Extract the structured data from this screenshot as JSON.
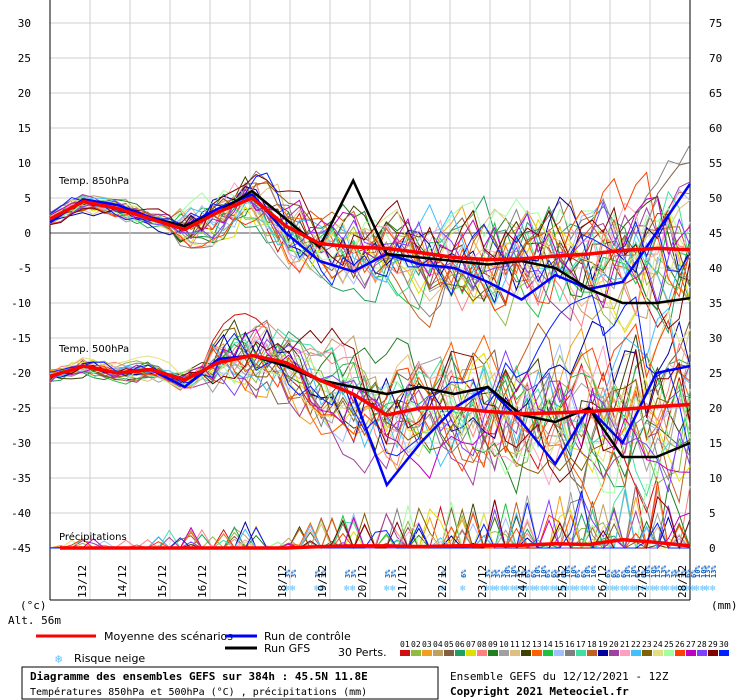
{
  "chart_data": {
    "type": "line",
    "left_axis_ticks": [
      30,
      25,
      20,
      15,
      10,
      5,
      0,
      -5,
      -10,
      -15,
      -20,
      -25,
      -30,
      -35,
      -40,
      -45
    ],
    "right_axis_ticks": [
      75,
      70,
      65,
      60,
      55,
      50,
      45,
      40,
      35,
      30,
      25,
      20,
      15,
      10,
      5,
      0
    ],
    "left_unit": "(°c)",
    "right_unit": "(mm)",
    "altitude": "Alt. 56m",
    "dates": [
      "13/12",
      "14/12",
      "15/12",
      "16/12",
      "17/12",
      "18/12",
      "19/12",
      "20/12",
      "21/12",
      "22/12",
      "23/12",
      "24/12",
      "25/12",
      "26/12",
      "27/12",
      "28/12"
    ],
    "series_labels": {
      "t850": "Temp. 850hPa",
      "t500": "Temp. 500hPa",
      "precip": "Précipitations"
    },
    "t850_mean": [
      2,
      4.5,
      3.5,
      2,
      0.5,
      3,
      5,
      1,
      -1.5,
      -2,
      -2.2,
      -2.8,
      -3.5,
      -3.8,
      -3.7,
      -3.3,
      -3,
      -2.5,
      -2.2,
      -2.4
    ],
    "t850_control": [
      1.5,
      4.8,
      4,
      2.2,
      1,
      3.5,
      5.5,
      0,
      -4,
      -5.5,
      -3,
      -4.5,
      -5,
      -7,
      -9.5,
      -6,
      -8,
      -7,
      0,
      7
    ],
    "t850_gfs": [
      2,
      4.5,
      3.5,
      2,
      1,
      3,
      6,
      2,
      -2,
      7.5,
      -3,
      -3.5,
      -4,
      -4.5,
      -4,
      -5,
      -8,
      -10,
      -10,
      -9.3
    ],
    "t500_mean": [
      -20.5,
      -19,
      -20,
      -19.5,
      -21,
      -18.5,
      -17.5,
      -18.5,
      -21,
      -23,
      -26,
      -25,
      -25,
      -25.5,
      -25.8,
      -25.7,
      -25.5,
      -25.2,
      -24.8,
      -24.5
    ],
    "t500_control": [
      -20.5,
      -19,
      -20,
      -19.5,
      -22,
      -18,
      -17.5,
      -19,
      -21,
      -23,
      -36,
      -30,
      -25,
      -22,
      -27,
      -33,
      -25,
      -30,
      -20,
      -19
    ],
    "t500_gfs": [
      -20.5,
      -19,
      -20,
      -19.5,
      -21,
      -18.5,
      -17.5,
      -19,
      -21,
      -22,
      -23,
      -22,
      -23,
      -22,
      -26,
      -27,
      -25,
      -32,
      -32,
      -30
    ],
    "precip_mean": [
      0,
      0,
      0,
      0,
      0,
      0,
      0,
      0,
      0.2,
      0.3,
      0.3,
      0.2,
      0.3,
      0.4,
      0.4,
      0.6,
      0.5,
      1.2,
      0.8,
      0.3
    ],
    "snow_marks": [
      {
        "day": 6.0,
        "labels": [
          "3%",
          "3%"
        ]
      },
      {
        "day": 6.75,
        "labels": [
          "3%",
          "3%"
        ]
      },
      {
        "day": 7.5,
        "labels": [
          "3%",
          "3%"
        ]
      },
      {
        "day": 8.5,
        "labels": [
          "3%",
          "3%"
        ]
      },
      {
        "day": 9.9,
        "labels": [
          "3%"
        ]
      },
      {
        "day": 10.4,
        "labels": [
          "6%"
        ]
      },
      {
        "day": 11.0,
        "labels": [
          "3%",
          "3%"
        ]
      },
      {
        "day": 11.25,
        "labels": [
          "3%",
          "3%"
        ]
      },
      {
        "day": 11.5,
        "labels": [
          "10%",
          "10%"
        ]
      },
      {
        "day": 11.75,
        "labels": [
          "3%",
          "3%"
        ]
      },
      {
        "day": 12.0,
        "labels": [
          "6%",
          "6%"
        ]
      },
      {
        "day": 12.25,
        "labels": [
          "10%",
          "10%"
        ]
      },
      {
        "day": 12.5,
        "labels": [
          "6%",
          "6%"
        ]
      },
      {
        "day": 12.75,
        "labels": [
          "6%",
          "6%"
        ]
      },
      {
        "day": 13.0,
        "labels": [
          "10%",
          "10%"
        ]
      },
      {
        "day": 13.25,
        "labels": [
          "6%",
          "6%"
        ]
      },
      {
        "day": 13.5,
        "labels": [
          "10%",
          "10%"
        ]
      },
      {
        "day": 14.0,
        "labels": [
          "6%",
          "6%"
        ]
      },
      {
        "day": 14.25,
        "labels": [
          "6%",
          "6%"
        ]
      },
      {
        "day": 14.5,
        "labels": [
          "10%",
          "10%"
        ]
      },
      {
        "day": 14.75,
        "labels": [
          "6%",
          "6%"
        ]
      },
      {
        "day": 15.0,
        "labels": [
          "10%",
          "10%"
        ]
      },
      {
        "day": 15.25,
        "labels": [
          "13%",
          "13%"
        ]
      },
      {
        "day": 15.5,
        "labels": [
          "3%",
          "3%"
        ]
      },
      {
        "day": 15.75,
        "labels": [
          "3%",
          "3%"
        ]
      },
      {
        "day": 16.0,
        "labels": [
          "6%",
          "6%"
        ]
      },
      {
        "day": 16.25,
        "labels": [
          "10%",
          "10%"
        ]
      },
      {
        "day": 16.5,
        "labels": [
          "13%",
          "13%"
        ]
      }
    ],
    "perturbations": [
      "01",
      "02",
      "03",
      "04",
      "05",
      "06",
      "07",
      "08",
      "09",
      "10",
      "11",
      "12",
      "13",
      "14",
      "15",
      "16",
      "17",
      "18",
      "19",
      "20",
      "21",
      "22",
      "23",
      "24",
      "25",
      "26",
      "27",
      "28",
      "29",
      "30"
    ],
    "perturbation_colors": [
      "#d01010",
      "#8fbc40",
      "#f0a020",
      "#c0a060",
      "#806040",
      "#20a060",
      "#e0e000",
      "#ff8080",
      "#208020",
      "#a0a0a0",
      "#e0c080",
      "#404000",
      "#ff6000",
      "#20c040",
      "#a0c0ff",
      "#808080",
      "#40e0a0",
      "#c06020",
      "#0000a0",
      "#a040a0",
      "#ffa0c0",
      "#40c0ff",
      "#806000",
      "#e0e080",
      "#a0ffa0",
      "#ff4000",
      "#c000c0",
      "#8040ff",
      "#800000",
      "#0020ff"
    ],
    "colors": {
      "mean": "#ff0000",
      "control": "#0000ff",
      "gfs": "#000000",
      "snow": "#60c0ff"
    }
  },
  "legend": {
    "mean": "Moyenne des scénarios",
    "control": "Run de contrôle",
    "gfs": "Run GFS",
    "snow": "Risque neige",
    "perts_label": "30 Perts."
  },
  "footer": {
    "title": "Diagramme des ensembles GEFS sur 384h : 45.5N 11.8E",
    "subtitle": "Températures 850hPa et 500hPa (°C) , précipitations (mm)",
    "run": "Ensemble GEFS du 12/12/2021 - 12Z",
    "copyright": "Copyright 2021 Meteociel.fr"
  }
}
